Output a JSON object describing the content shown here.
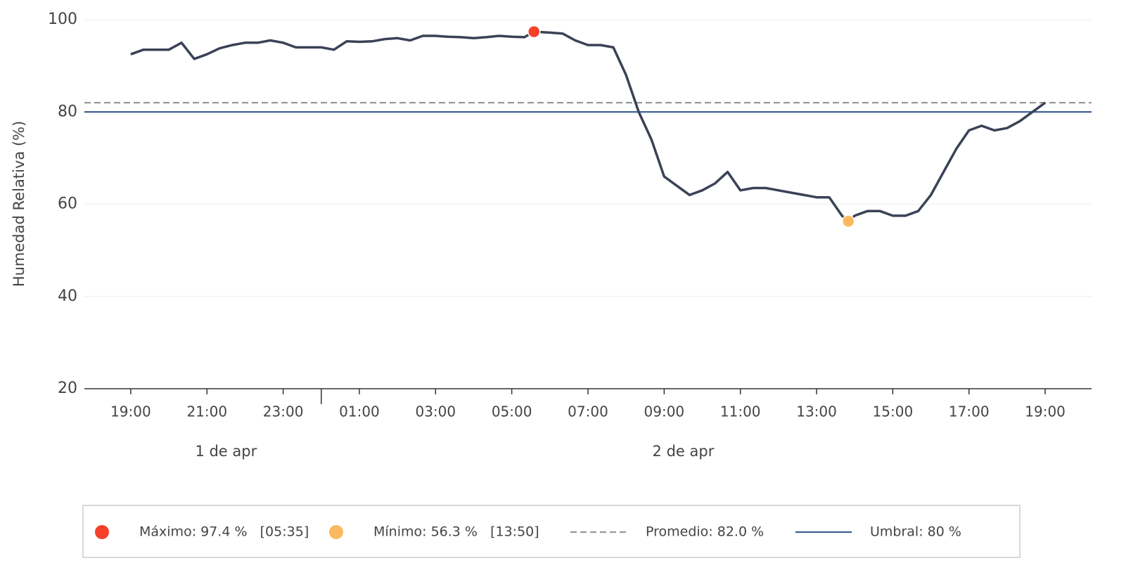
{
  "chart_data": {
    "type": "line",
    "y_label": "Humedad Relativa (%)",
    "ylim": [
      20,
      100
    ],
    "yticks": [
      20,
      40,
      60,
      80,
      100
    ],
    "grid": true,
    "xlim": [
      "1 de apr 17:47",
      "2 de apr 20:13"
    ],
    "xticks": [
      {
        "value": "1 de apr 19:00",
        "label": "19:00"
      },
      {
        "value": "1 de apr 21:00",
        "label": "21:00"
      },
      {
        "value": "1 de apr 23:00",
        "label": "23:00"
      },
      {
        "value": "2 de apr 01:00",
        "label": "01:00"
      },
      {
        "value": "2 de apr 03:00",
        "label": "03:00"
      },
      {
        "value": "2 de apr 05:00",
        "label": "05:00"
      },
      {
        "value": "2 de apr 07:00",
        "label": "07:00"
      },
      {
        "value": "2 de apr 09:00",
        "label": "09:00"
      },
      {
        "value": "2 de apr 11:00",
        "label": "11:00"
      },
      {
        "value": "2 de apr 13:00",
        "label": "13:00"
      },
      {
        "value": "2 de apr 15:00",
        "label": "15:00"
      },
      {
        "value": "2 de apr 17:00",
        "label": "17:00"
      },
      {
        "value": "2 de apr 19:00",
        "label": "19:00"
      }
    ],
    "day_labels": [
      "1 de apr",
      "2 de apr"
    ],
    "x": [
      "1 de apr 19:00",
      "1 de apr 19:20",
      "1 de apr 19:40",
      "1 de apr 20:00",
      "1 de apr 20:20",
      "1 de apr 20:40",
      "1 de apr 21:00",
      "1 de apr 21:20",
      "1 de apr 21:40",
      "1 de apr 22:00",
      "1 de apr 22:20",
      "1 de apr 22:40",
      "1 de apr 23:00",
      "1 de apr 23:20",
      "1 de apr 23:40",
      "2 de apr 00:00",
      "2 de apr 00:20",
      "2 de apr 00:40",
      "2 de apr 01:00",
      "2 de apr 01:20",
      "2 de apr 01:40",
      "2 de apr 02:00",
      "2 de apr 02:20",
      "2 de apr 02:40",
      "2 de apr 03:00",
      "2 de apr 03:20",
      "2 de apr 03:40",
      "2 de apr 04:00",
      "2 de apr 04:20",
      "2 de apr 04:40",
      "2 de apr 05:00",
      "2 de apr 05:20",
      "2 de apr 05:35",
      "2 de apr 06:00",
      "2 de apr 06:20",
      "2 de apr 06:40",
      "2 de apr 07:00",
      "2 de apr 07:20",
      "2 de apr 07:40",
      "2 de apr 08:00",
      "2 de apr 08:20",
      "2 de apr 08:40",
      "2 de apr 09:00",
      "2 de apr 09:20",
      "2 de apr 09:40",
      "2 de apr 10:00",
      "2 de apr 10:20",
      "2 de apr 10:40",
      "2 de apr 11:00",
      "2 de apr 11:20",
      "2 de apr 11:40",
      "2 de apr 12:00",
      "2 de apr 12:20",
      "2 de apr 12:40",
      "2 de apr 13:00",
      "2 de apr 13:20",
      "2 de apr 13:40",
      "2 de apr 13:50",
      "2 de apr 14:00",
      "2 de apr 14:20",
      "2 de apr 14:40",
      "2 de apr 15:00",
      "2 de apr 15:20",
      "2 de apr 15:40",
      "2 de apr 16:00",
      "2 de apr 16:20",
      "2 de apr 16:40",
      "2 de apr 17:00",
      "2 de apr 17:20",
      "2 de apr 17:40",
      "2 de apr 18:00",
      "2 de apr 18:20",
      "2 de apr 18:40",
      "2 de apr 19:00"
    ],
    "series": [
      {
        "name": "Humedad Relativa",
        "color": "#3b4257",
        "values": [
          92.5,
          93.5,
          93.5,
          93.5,
          95,
          91.5,
          92.5,
          93.8,
          94.5,
          95,
          95,
          95.5,
          95,
          94,
          94,
          94,
          93.5,
          95.3,
          95.2,
          95.3,
          95.8,
          96,
          95.5,
          96.5,
          96.5,
          96.3,
          96.2,
          96,
          96.2,
          96.5,
          96.3,
          96.2,
          97.4,
          97.2,
          97,
          95.5,
          94.5,
          94.5,
          94,
          88,
          80,
          74,
          66,
          64,
          62,
          63,
          64.5,
          67,
          63,
          63.5,
          63.5,
          63,
          62.5,
          62,
          61.5,
          61.5,
          57.5,
          56.3,
          57.5,
          58.5,
          58.5,
          57.5,
          57.5,
          58.5,
          62,
          67,
          72,
          76,
          77,
          76,
          76.5,
          78,
          80,
          82
        ]
      }
    ],
    "points": [
      {
        "label": "Máximo: 97.4 %   [05:35]",
        "x": "2 de apr 05:35",
        "value": 97.4,
        "color": "#f5402a"
      },
      {
        "label": "Mínimo: 56.3 %   [13:50]",
        "x": "2 de apr 13:50",
        "value": 56.3,
        "color": "#fbb95f"
      }
    ],
    "reference_lines": [
      {
        "label": "Promedio: 82.0 %",
        "value": 82,
        "color": "#999999",
        "style": "dashed"
      },
      {
        "label": "Umbral: 80 %",
        "value": 80,
        "color": "#3d5f8f",
        "style": "solid"
      }
    ]
  }
}
